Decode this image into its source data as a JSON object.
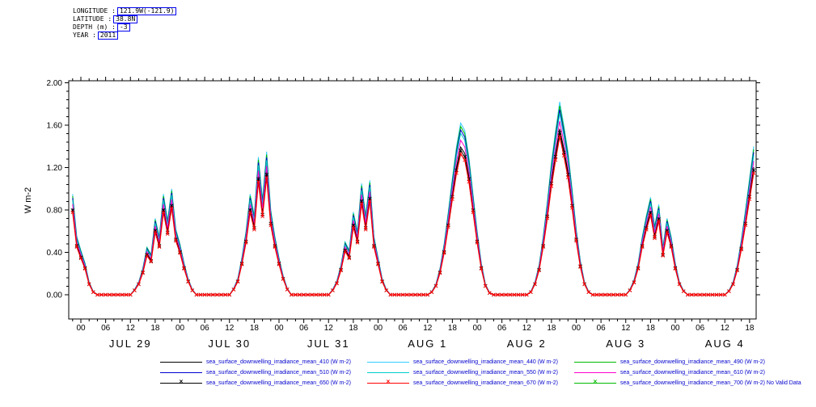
{
  "header": {
    "rows": [
      {
        "label": "LONGITUDE :",
        "value": "121.9W(-121.9)"
      },
      {
        "label": "LATITUDE :",
        "value": "38.8N"
      },
      {
        "label": "DEPTH (m) :",
        "value": "-3"
      },
      {
        "label": "YEAR :",
        "value": "2011"
      }
    ],
    "value_box_color": "#0000ee"
  },
  "chart_data": {
    "type": "line",
    "title": "",
    "ylabel": "W m-2",
    "ylim": [
      0,
      2.0
    ],
    "ytick_values": [
      0.0,
      0.4,
      0.8,
      1.2,
      1.6,
      2.0
    ],
    "ytick_labels": [
      "0.00",
      "0.40",
      "0.80",
      "1.20",
      "1.60",
      "2.00"
    ],
    "xtick_hour_cycle_labels": [
      "00",
      "06",
      "12",
      "18"
    ],
    "day_labels": [
      "JUL 29",
      "JUL 30",
      "JUL 31",
      "AUG 1",
      "AUG 2",
      "AUG 3",
      "AUG 4"
    ],
    "x_axis_note": "hours UTC, JUL 28 22:00 2011 through AUG 4 19:00 2011, hourly samples",
    "x_start_hour": -2,
    "x_step_hours": 1,
    "grid": false,
    "legend_position": "bottom",
    "legend_text_color": "#0000cc",
    "base_profile_values": [
      0.95,
      0.55,
      0.42,
      0.3,
      0.12,
      0.03,
      0,
      0,
      0,
      0,
      0,
      0,
      0,
      0,
      0,
      0.05,
      0.12,
      0.25,
      0.45,
      0.38,
      0.72,
      0.55,
      0.95,
      0.7,
      1.0,
      0.62,
      0.48,
      0.3,
      0.15,
      0.05,
      0,
      0,
      0,
      0,
      0,
      0,
      0,
      0,
      0,
      0.06,
      0.15,
      0.35,
      0.6,
      0.95,
      0.75,
      1.3,
      0.9,
      1.35,
      0.8,
      0.55,
      0.35,
      0.18,
      0.06,
      0,
      0,
      0,
      0,
      0,
      0,
      0,
      0,
      0,
      0,
      0.05,
      0.13,
      0.28,
      0.5,
      0.42,
      0.78,
      0.6,
      1.05,
      0.75,
      1.08,
      0.55,
      0.35,
      0.15,
      0.05,
      0,
      0,
      0,
      0,
      0,
      0,
      0,
      0,
      0,
      0,
      0.03,
      0.1,
      0.25,
      0.48,
      0.78,
      1.1,
      1.4,
      1.62,
      1.55,
      1.3,
      0.95,
      0.6,
      0.3,
      0.1,
      0.02,
      0,
      0,
      0,
      0,
      0,
      0,
      0,
      0,
      0,
      0.03,
      0.12,
      0.28,
      0.55,
      0.88,
      1.25,
      1.55,
      1.82,
      1.6,
      1.35,
      1.0,
      0.62,
      0.32,
      0.12,
      0.03,
      0,
      0,
      0,
      0,
      0,
      0,
      0,
      0,
      0,
      0.05,
      0.14,
      0.3,
      0.55,
      0.75,
      0.92,
      0.65,
      0.85,
      0.45,
      0.72,
      0.55,
      0.3,
      0.12,
      0.04,
      0,
      0,
      0,
      0,
      0,
      0,
      0,
      0,
      0,
      0,
      0.04,
      0.12,
      0.28,
      0.52,
      0.8,
      1.1,
      1.4
    ],
    "series": [
      {
        "id": "410",
        "label": "sea_surface_downwelling_irradiance_mean_410 (W m-2)",
        "color": "#000000",
        "scale": 0.86,
        "marker": "none"
      },
      {
        "id": "440",
        "label": "sea_surface_downwelling_irradiance_mean_440 (W m-2)",
        "color": "#33ccff",
        "scale": 1.0,
        "marker": "none"
      },
      {
        "id": "490",
        "label": "sea_surface_downwelling_irradiance_mean_490 (W m-2)",
        "color": "#00bb00",
        "scale": 0.98,
        "marker": "none"
      },
      {
        "id": "510",
        "label": "sea_surface_downwelling_irradiance_mean_510 (W m-2)",
        "color": "#0000cc",
        "scale": 0.96,
        "marker": "none"
      },
      {
        "id": "550",
        "label": "sea_surface_downwelling_irradiance_mean_550 (W m-2)",
        "color": "#00cccc",
        "scale": 0.94,
        "marker": "none"
      },
      {
        "id": "610",
        "label": "sea_surface_downwelling_irradiance_mean_610 (W m-2)",
        "color": "#ff00cc",
        "scale": 0.9,
        "marker": "none"
      },
      {
        "id": "650",
        "label": "sea_surface_downwelling_irradiance_mean_650 (W m-2)",
        "color": "#000000",
        "scale": 0.84,
        "marker": "x"
      },
      {
        "id": "670",
        "label": "sea_surface_downwelling_irradiance_mean_670 (W m-2)",
        "color": "#ff0000",
        "scale": 0.82,
        "marker": "x"
      },
      {
        "id": "700",
        "label": "sea_surface_downwelling_irradiance_mean_700 (W m-2) No Valid Data",
        "color": "#00bb00",
        "scale": null,
        "marker": "x",
        "no_data": true
      }
    ]
  }
}
